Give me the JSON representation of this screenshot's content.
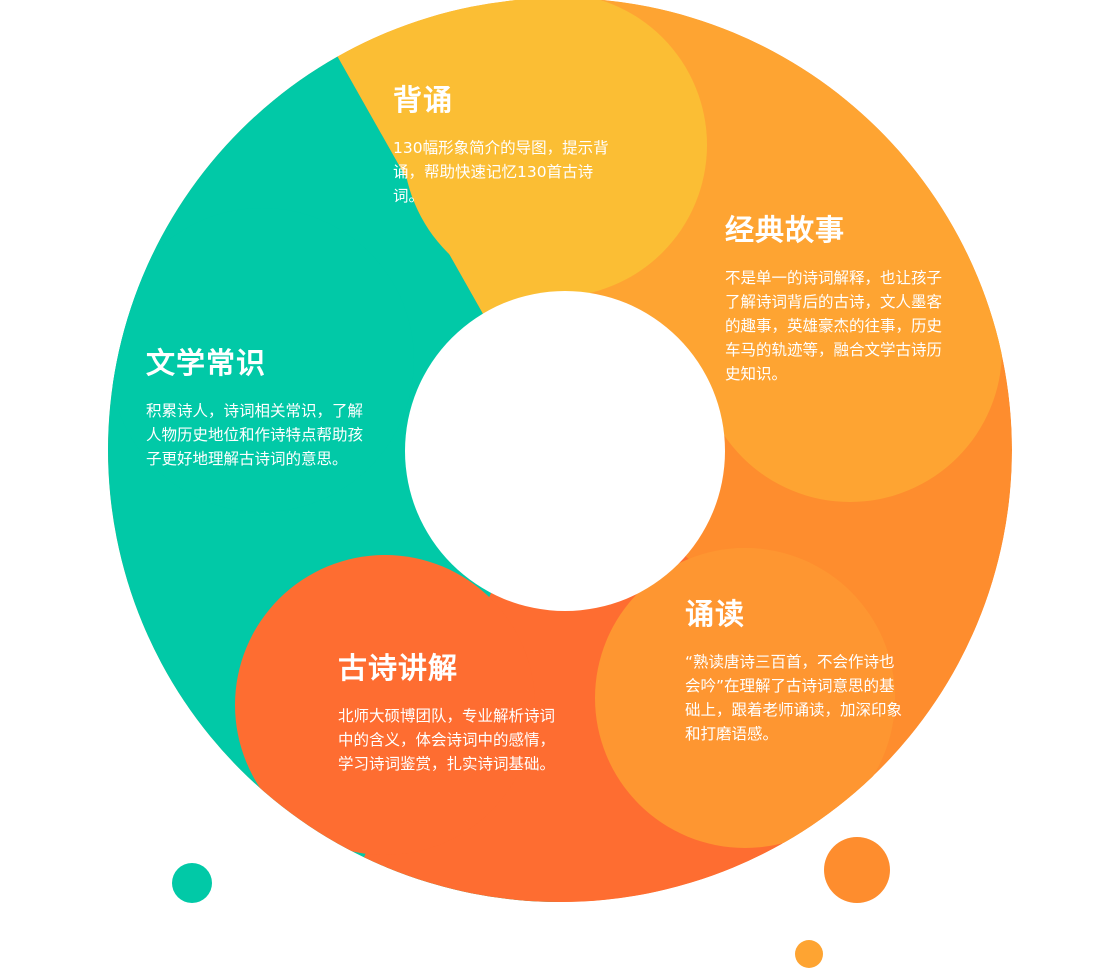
{
  "colors": {
    "recite": "#fbbe34",
    "stories": "#fea432",
    "stories_dark": "#fe8d2e",
    "literary": "#01c9a7",
    "explain": "#fe6d31",
    "reading": "#fe9631",
    "bubble_green": "#01c9a7",
    "bubble_orange": "#fe8d2e",
    "bubble_small": "#fea432"
  },
  "segments": [
    {
      "key": "recite",
      "title": "背诵",
      "desc": "130幅形象简介的导图，提示背诵，帮助快速记忆130首古诗词。"
    },
    {
      "key": "stories",
      "title": "经典故事",
      "desc": "不是单一的诗词解释，也让孩子了解诗词背后的古诗，文人墨客的趣事，英雄豪杰的往事，历史车马的轨迹等，融合文学古诗历史知识。"
    },
    {
      "key": "literary",
      "title": "文学常识",
      "desc": "积累诗人，诗词相关常识，了解人物历史地位和作诗特点帮助孩子更好地理解古诗词的意思。"
    },
    {
      "key": "reading",
      "title": "诵读",
      "desc": "“熟读唐诗三百首，不会作诗也会吟”在理解了古诗词意思的基础上，跟着老师诵读，加深印象和打磨语感。"
    },
    {
      "key": "explain",
      "title": "古诗讲解",
      "desc": "北师大硕博团队，专业解析诗词中的含义，体会诗词中的感情，学习诗词鉴赏，扎实诗词基础。"
    }
  ]
}
